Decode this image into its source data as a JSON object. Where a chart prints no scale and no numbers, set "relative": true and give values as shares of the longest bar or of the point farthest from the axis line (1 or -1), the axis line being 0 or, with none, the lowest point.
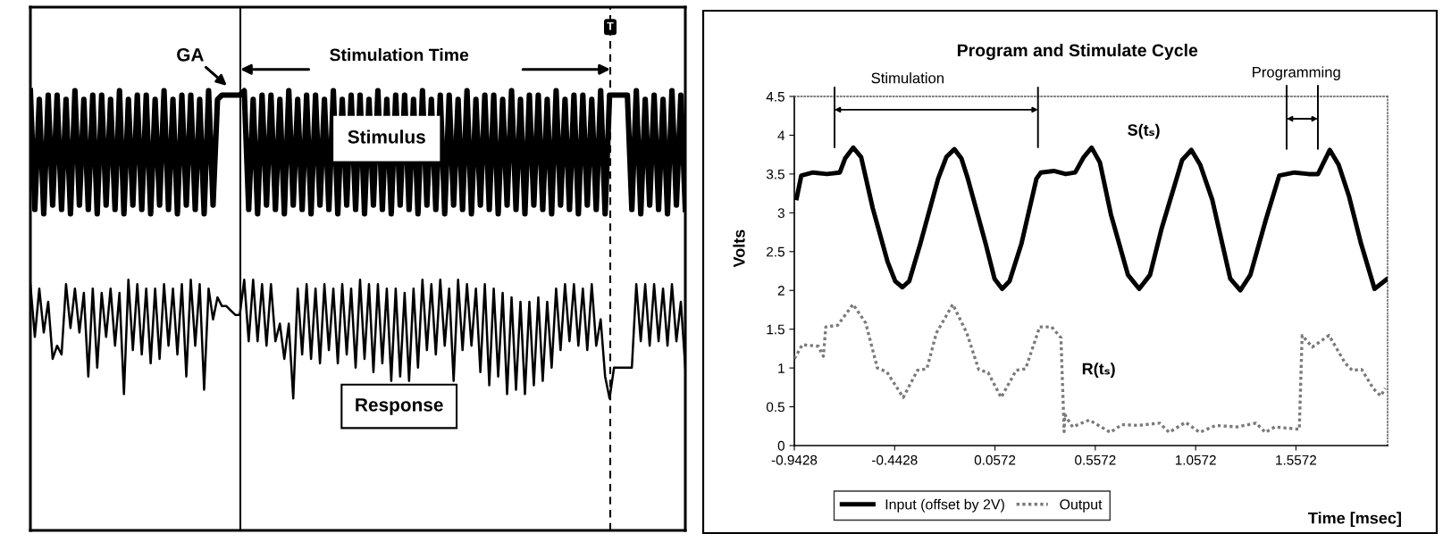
{
  "chart_data": [
    {
      "type": "line",
      "relative": true,
      "categories": [
        null,
        null,
        null,
        null,
        null,
        null,
        null,
        null,
        null,
        null,
        null,
        null,
        null,
        null,
        null,
        null,
        null,
        null,
        null,
        null,
        null,
        null,
        null,
        null,
        null,
        null,
        null,
        null,
        null,
        null,
        null,
        null,
        null,
        null,
        null,
        null,
        null,
        null,
        null,
        null,
        null,
        null,
        null,
        null,
        null,
        null,
        null,
        null,
        null,
        null,
        null,
        null,
        null,
        null,
        null,
        null,
        null,
        null,
        null,
        null,
        null,
        null,
        null,
        null,
        null,
        null,
        null,
        null,
        null,
        null,
        null,
        null,
        null,
        null,
        null,
        null,
        null,
        null,
        null,
        null,
        null,
        null,
        null,
        null,
        null,
        null,
        null,
        null,
        null,
        null,
        null,
        null,
        null,
        null,
        null,
        null,
        null,
        null,
        null,
        null,
        null,
        null,
        null,
        null,
        null,
        null,
        null,
        null,
        null,
        null,
        null,
        null,
        null,
        null,
        null,
        null,
        null,
        null,
        null,
        null,
        null,
        null,
        null,
        null,
        null,
        null,
        null,
        null,
        null,
        null,
        null,
        null,
        null,
        null,
        null,
        null,
        null,
        null,
        null,
        null,
        null,
        null,
        null,
        null,
        null,
        null,
        null,
        null
      ],
      "series": [
        {
          "name": "Stimulus",
          "color": "#000000",
          "values": [
            1.0,
            0.73,
            0.98,
            0.72,
            0.99,
            0.74,
            0.99,
            0.73,
            0.98,
            0.72,
            1.0,
            0.74,
            0.98,
            0.73,
            0.99,
            0.72,
            0.99,
            0.74,
            0.98,
            0.73,
            1.0,
            0.72,
            0.98,
            0.74,
            0.99,
            0.73,
            0.99,
            0.72,
            0.98,
            0.74,
            1.0,
            0.73,
            0.98,
            0.72,
            0.99,
            0.74,
            0.99,
            0.73,
            0.98,
            0.72,
            1.0,
            0.74,
            0.98,
            0.99,
            0.99,
            0.99,
            0.99,
            0.99,
            1.0,
            0.73,
            0.98,
            0.72,
            0.99,
            0.74,
            0.99,
            0.73,
            0.98,
            0.72,
            1.0,
            0.74,
            0.98,
            0.73,
            0.99,
            0.72,
            0.99,
            0.74,
            0.98,
            0.73,
            1.0,
            0.72,
            0.98,
            0.74,
            0.99,
            0.73,
            0.99,
            0.72,
            0.98,
            0.74,
            1.0,
            0.73,
            0.98,
            0.72,
            0.99,
            0.74,
            0.99,
            0.73,
            0.98,
            0.72,
            1.0,
            0.74,
            0.98,
            0.73,
            0.99,
            0.72,
            0.99,
            0.74,
            0.98,
            0.73,
            1.0,
            0.72,
            0.98,
            0.74,
            0.99,
            0.73,
            0.99,
            0.72,
            0.98,
            0.74,
            1.0,
            0.73,
            0.98,
            0.72,
            0.99,
            0.74,
            0.99,
            0.73,
            0.98,
            0.72,
            1.0,
            0.74,
            0.98,
            0.73,
            0.99,
            0.72,
            0.99,
            0.74,
            0.98,
            0.73,
            1.0,
            0.72,
            0.99,
            0.99,
            0.99,
            0.99,
            0.99,
            0.73,
            1.0,
            0.72,
            0.98,
            0.74,
            0.99,
            0.73,
            0.98,
            0.72,
            1.0,
            0.74,
            0.99,
            0.73
          ]
        },
        {
          "name": "Response",
          "color": "#000000",
          "values": [
            0.56,
            0.44,
            0.55,
            0.45,
            0.52,
            0.39,
            0.42,
            0.4,
            0.56,
            0.46,
            0.55,
            0.45,
            0.54,
            0.35,
            0.55,
            0.37,
            0.54,
            0.44,
            0.55,
            0.42,
            0.54,
            0.31,
            0.57,
            0.41,
            0.56,
            0.4,
            0.55,
            0.38,
            0.55,
            0.39,
            0.56,
            0.42,
            0.55,
            0.4,
            0.56,
            0.35,
            0.57,
            0.42,
            0.56,
            0.32,
            0.55,
            0.48,
            0.53,
            0.51,
            0.51,
            0.5,
            0.49,
            0.49,
            0.57,
            0.43,
            0.57,
            0.43,
            0.56,
            0.42,
            0.56,
            0.43,
            0.47,
            0.39,
            0.47,
            0.3,
            0.55,
            0.4,
            0.56,
            0.39,
            0.55,
            0.38,
            0.56,
            0.41,
            0.55,
            0.38,
            0.56,
            0.4,
            0.55,
            0.37,
            0.57,
            0.39,
            0.56,
            0.36,
            0.56,
            0.38,
            0.55,
            0.34,
            0.55,
            0.35,
            0.54,
            0.34,
            0.55,
            0.37,
            0.57,
            0.41,
            0.56,
            0.4,
            0.57,
            0.42,
            0.55,
            0.34,
            0.57,
            0.41,
            0.56,
            0.42,
            0.55,
            0.36,
            0.56,
            0.33,
            0.55,
            0.35,
            0.54,
            0.31,
            0.53,
            0.32,
            0.52,
            0.31,
            0.52,
            0.33,
            0.53,
            0.34,
            0.52,
            0.37,
            0.55,
            0.41,
            0.56,
            0.43,
            0.56,
            0.42,
            0.55,
            0.41,
            0.56,
            0.42,
            0.48,
            0.35,
            0.3,
            0.37,
            0.37,
            0.37,
            0.37,
            0.37,
            0.56,
            0.43,
            0.56,
            0.42,
            0.56,
            0.43,
            0.55,
            0.42,
            0.56,
            0.43,
            0.52,
            0.37
          ]
        }
      ],
      "annotations": [
        "GA",
        "Stimulation Time",
        "T"
      ]
    },
    {
      "type": "line",
      "title": "Program and Stimulate Cycle",
      "xlabel": "Time [msec]",
      "ylabel": "Volts",
      "xlim": [
        -0.9428,
        2.014
      ],
      "xticks": [
        -0.9428,
        -0.4428,
        0.0572,
        0.5572,
        1.0572,
        1.5572
      ],
      "ylim": [
        0,
        4.5
      ],
      "yticks": [
        0,
        0.5,
        1,
        1.5,
        2,
        2.5,
        3,
        3.5,
        4,
        4.5
      ],
      "series": [
        {
          "name": "Input (offset by 2V)",
          "color": "#000000",
          "line_style": "solid",
          "x": [
            -0.931,
            -0.908,
            -0.85,
            -0.78,
            -0.716,
            -0.69,
            -0.649,
            -0.61,
            -0.552,
            -0.478,
            -0.44,
            -0.404,
            -0.37,
            -0.315,
            -0.226,
            -0.185,
            -0.145,
            -0.11,
            -0.078,
            0.011,
            0.055,
            0.093,
            0.13,
            0.189,
            0.264,
            0.286,
            0.35,
            0.41,
            0.457,
            0.5,
            0.539,
            0.58,
            0.635,
            0.72,
            0.776,
            0.83,
            0.887,
            0.99,
            1.036,
            1.08,
            1.14,
            1.23,
            1.28,
            1.33,
            1.406,
            1.474,
            1.55,
            1.62,
            1.667,
            1.726,
            1.77,
            1.822,
            1.882,
            1.949,
            2.008
          ],
          "values": [
            3.19,
            3.48,
            3.52,
            3.5,
            3.52,
            3.7,
            3.84,
            3.72,
            3.06,
            2.37,
            2.12,
            2.04,
            2.12,
            2.6,
            3.44,
            3.72,
            3.82,
            3.7,
            3.44,
            2.6,
            2.15,
            2.02,
            2.12,
            2.6,
            3.44,
            3.52,
            3.54,
            3.5,
            3.52,
            3.72,
            3.84,
            3.65,
            2.98,
            2.2,
            2.02,
            2.2,
            2.79,
            3.68,
            3.81,
            3.62,
            3.17,
            2.15,
            2.0,
            2.2,
            2.9,
            3.48,
            3.52,
            3.5,
            3.5,
            3.81,
            3.62,
            3.21,
            2.6,
            2.02,
            2.14
          ]
        },
        {
          "name": "Output",
          "color": "#7a7a7a",
          "line_style": "dotted",
          "x": [
            -0.942,
            -0.903,
            -0.823,
            -0.798,
            -0.786,
            -0.727,
            -0.65,
            -0.587,
            -0.529,
            -0.482,
            -0.4,
            -0.329,
            -0.282,
            -0.235,
            -0.153,
            -0.083,
            -0.024,
            0.023,
            0.088,
            0.163,
            0.21,
            0.28,
            0.339,
            0.386,
            0.402,
            0.405,
            0.444,
            0.527,
            0.632,
            0.69,
            0.772,
            0.878,
            0.925,
            1.007,
            1.077,
            1.159,
            1.264,
            1.358,
            1.405,
            1.452,
            1.574,
            1.588,
            1.639,
            1.722,
            1.803,
            1.838,
            1.885,
            1.944,
            1.98,
            2.002
          ],
          "values": [
            1.12,
            1.3,
            1.28,
            1.15,
            1.53,
            1.55,
            1.82,
            1.58,
            1.0,
            0.95,
            0.62,
            0.97,
            0.99,
            1.45,
            1.82,
            1.45,
            0.98,
            0.94,
            0.62,
            0.97,
            0.99,
            1.53,
            1.53,
            1.39,
            0.18,
            0.4,
            0.24,
            0.33,
            0.17,
            0.27,
            0.26,
            0.29,
            0.17,
            0.3,
            0.17,
            0.26,
            0.24,
            0.29,
            0.17,
            0.24,
            0.21,
            1.42,
            1.27,
            1.42,
            1.06,
            0.97,
            0.98,
            0.73,
            0.64,
            0.74
          ]
        }
      ],
      "annotations": [
        "Stimulation",
        "Programming",
        "S(tₛ)",
        "R(tₛ)"
      ],
      "legend": "bottom"
    }
  ]
}
